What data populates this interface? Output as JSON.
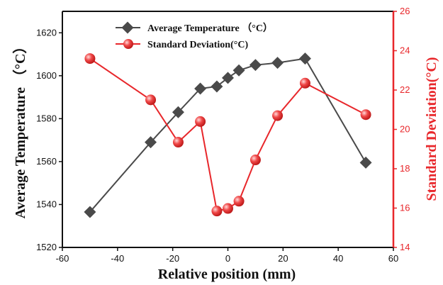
{
  "chart_data": {
    "type": "line",
    "xlabel": "Relative position (mm)",
    "xlim": [
      -60,
      60
    ],
    "xticks": [
      -60,
      -40,
      -20,
      0,
      20,
      40,
      60
    ],
    "y_left": {
      "label": "Average Temperature （°C）",
      "lim": [
        1520,
        1630
      ],
      "ticks": [
        1520,
        1540,
        1560,
        1580,
        1600,
        1620
      ],
      "color": "#111111"
    },
    "y_right": {
      "label": "Standard Deviation(°C)",
      "lim": [
        14,
        26
      ],
      "ticks": [
        14,
        16,
        18,
        20,
        22,
        24,
        26
      ],
      "color": "#e8272b"
    },
    "legend_position": "top-center",
    "grid": false,
    "series": [
      {
        "name": "Average Temperature （°C）",
        "axis": "left",
        "marker": "diamond",
        "color": "#4a4a4a",
        "points": [
          {
            "x": -50,
            "y": 1536.5
          },
          {
            "x": -28,
            "y": 1569
          },
          {
            "x": -18,
            "y": 1583
          },
          {
            "x": -10,
            "y": 1594
          },
          {
            "x": -4,
            "y": 1595
          },
          {
            "x": 0,
            "y": 1599
          },
          {
            "x": 4,
            "y": 1602.5
          },
          {
            "x": 10,
            "y": 1605
          },
          {
            "x": 18,
            "y": 1606
          },
          {
            "x": 28,
            "y": 1608
          },
          {
            "x": 50,
            "y": 1559.5
          }
        ]
      },
      {
        "name": "Standard Deviation(°C)",
        "axis": "right",
        "marker": "circle",
        "color": "#e8272b",
        "points": [
          {
            "x": -50,
            "y": 23.6
          },
          {
            "x": -28,
            "y": 21.5
          },
          {
            "x": -18,
            "y": 19.35
          },
          {
            "x": -10,
            "y": 20.4
          },
          {
            "x": -4,
            "y": 15.85
          },
          {
            "x": 0,
            "y": 15.98
          },
          {
            "x": 4,
            "y": 16.35
          },
          {
            "x": 10,
            "y": 18.45
          },
          {
            "x": 18,
            "y": 20.7
          },
          {
            "x": 28,
            "y": 22.35
          },
          {
            "x": 50,
            "y": 20.75
          }
        ]
      }
    ]
  }
}
